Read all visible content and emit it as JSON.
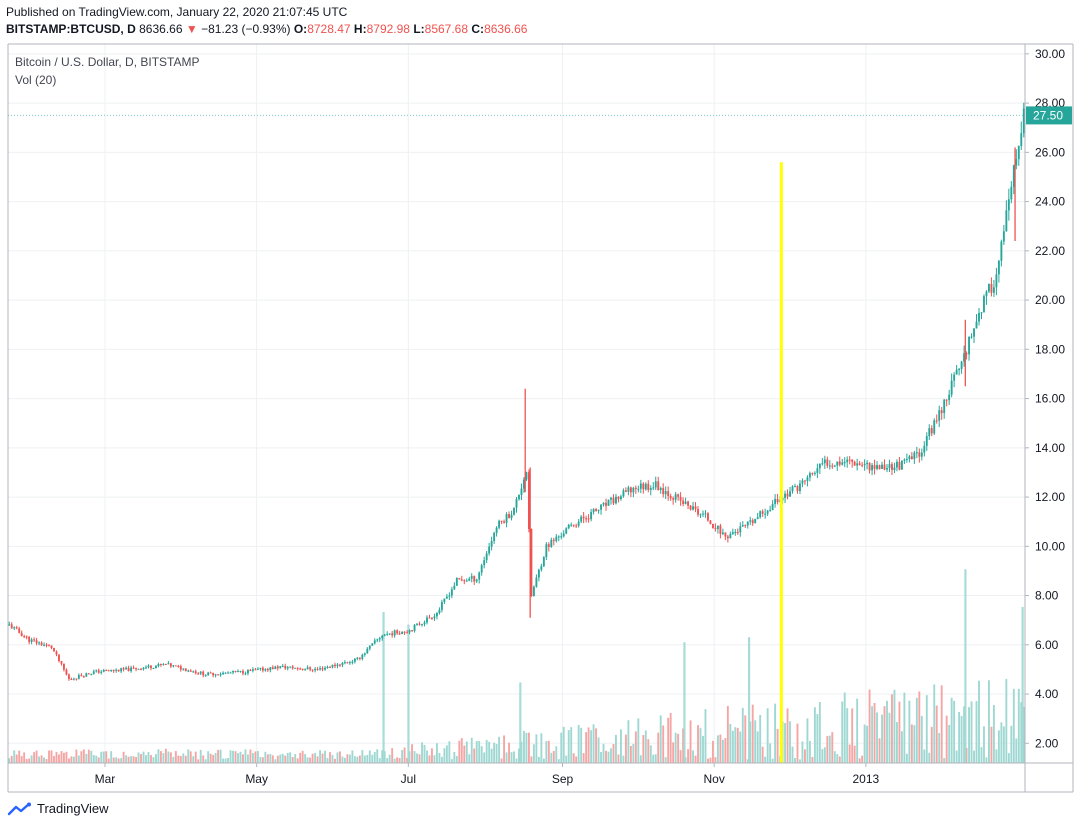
{
  "header": {
    "published": "Published on TradingView.com, January 22, 2020 21:07:45 UTC",
    "symbol": "BITSTAMP:BTCUSD, D",
    "last": "8636.66",
    "change": "−81.23 (−0.93%)",
    "o_label": "O:",
    "o": "8728.47",
    "h_label": "H:",
    "h": "8792.98",
    "l_label": "L:",
    "l": "8567.68",
    "c_label": "C:",
    "c": "8636.66"
  },
  "legend": {
    "title": "Bitcoin / U.S. Dollar, D, BITSTAMP",
    "indicator": "Vol (20)"
  },
  "footer": {
    "brand": "TradingView"
  },
  "colors": {
    "up": "#26a69a",
    "down": "#ef5350",
    "vol_up": "#9fd8d2",
    "vol_down": "#f5a6a4",
    "marker": "#ffff00",
    "price_tag": "#26a69a"
  },
  "chart_data": {
    "type": "candlestick",
    "symbol": "BTCUSD",
    "price_axis": {
      "min": 1.2,
      "max": 30.4,
      "ticks": [
        "2.00",
        "4.00",
        "6.00",
        "8.00",
        "10.00",
        "12.00",
        "14.00",
        "16.00",
        "18.00",
        "20.00",
        "22.00",
        "24.00",
        "26.00",
        "28.00",
        "30.00"
      ]
    },
    "time_axis": {
      "labels": [
        "Mar",
        "May",
        "Jul",
        "Sep",
        "Nov",
        "2013"
      ]
    },
    "last_price_label": "27.50",
    "last_price": 27.5,
    "vertical_marker": {
      "date": "2012-11-28",
      "from": 1.2,
      "to": 25.6
    },
    "trend": [
      {
        "d": "2012-01-22",
        "p": 6.8
      },
      {
        "d": "2012-01-30",
        "p": 6.2
      },
      {
        "d": "2012-02-08",
        "p": 5.9
      },
      {
        "d": "2012-02-15",
        "p": 4.6
      },
      {
        "d": "2012-02-25",
        "p": 4.9
      },
      {
        "d": "2012-03-10",
        "p": 5.0
      },
      {
        "d": "2012-03-25",
        "p": 5.2
      },
      {
        "d": "2012-04-10",
        "p": 4.8
      },
      {
        "d": "2012-04-25",
        "p": 4.9
      },
      {
        "d": "2012-05-10",
        "p": 5.1
      },
      {
        "d": "2012-05-25",
        "p": 5.0
      },
      {
        "d": "2012-06-10",
        "p": 5.4
      },
      {
        "d": "2012-06-20",
        "p": 6.4
      },
      {
        "d": "2012-07-01",
        "p": 6.6
      },
      {
        "d": "2012-07-12",
        "p": 7.3
      },
      {
        "d": "2012-07-20",
        "p": 8.6
      },
      {
        "d": "2012-07-28",
        "p": 8.7
      },
      {
        "d": "2012-08-05",
        "p": 10.8
      },
      {
        "d": "2012-08-12",
        "p": 11.5
      },
      {
        "d": "2012-08-17",
        "p": 13.1
      },
      {
        "d": "2012-08-19",
        "p": 8.0
      },
      {
        "d": "2012-08-25",
        "p": 10.0
      },
      {
        "d": "2012-09-05",
        "p": 10.9
      },
      {
        "d": "2012-09-20",
        "p": 11.8
      },
      {
        "d": "2012-09-30",
        "p": 12.4
      },
      {
        "d": "2012-10-08",
        "p": 12.5
      },
      {
        "d": "2012-10-20",
        "p": 11.7
      },
      {
        "d": "2012-10-28",
        "p": 11.2
      },
      {
        "d": "2012-11-05",
        "p": 10.4
      },
      {
        "d": "2012-11-15",
        "p": 10.9
      },
      {
        "d": "2012-11-25",
        "p": 11.8
      },
      {
        "d": "2012-12-05",
        "p": 12.5
      },
      {
        "d": "2012-12-15",
        "p": 13.4
      },
      {
        "d": "2012-12-25",
        "p": 13.5
      },
      {
        "d": "2013-01-05",
        "p": 13.2
      },
      {
        "d": "2013-01-15",
        "p": 13.3
      },
      {
        "d": "2013-01-22",
        "p": 13.8
      },
      {
        "d": "2013-01-30",
        "p": 15.4
      },
      {
        "d": "2013-02-08",
        "p": 17.5
      },
      {
        "d": "2013-02-15",
        "p": 19.5
      },
      {
        "d": "2013-02-22",
        "p": 21.0
      },
      {
        "d": "2013-02-28",
        "p": 24.5
      },
      {
        "d": "2013-03-05",
        "p": 27.5
      }
    ],
    "wicks": [
      {
        "d": "2012-08-17",
        "high": 16.4,
        "low": 12.2
      },
      {
        "d": "2012-08-19",
        "high": 13.2,
        "low": 7.1
      },
      {
        "d": "2013-02-10",
        "high": 19.2,
        "low": 16.5
      },
      {
        "d": "2013-03-02",
        "high": 26.2,
        "low": 22.4
      }
    ],
    "volume_spikes": [
      {
        "d": "2012-06-21",
        "v": 0.6
      },
      {
        "d": "2012-07-01",
        "v": 0.55
      },
      {
        "d": "2012-08-15",
        "v": 0.32
      },
      {
        "d": "2012-10-20",
        "v": 0.48
      },
      {
        "d": "2012-11-15",
        "v": 0.5
      },
      {
        "d": "2013-02-10",
        "v": 0.77
      },
      {
        "d": "2013-03-05",
        "v": 0.62
      }
    ]
  }
}
